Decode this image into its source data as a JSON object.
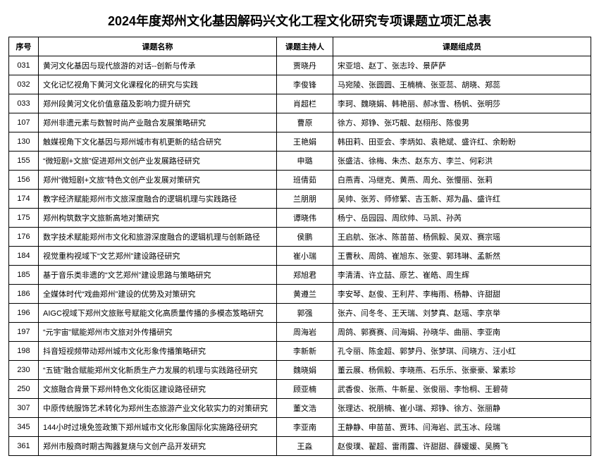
{
  "title": "2024年度郑州文化基因解码兴文化工程文化研究专项课题立项汇总表",
  "columns": [
    "序号",
    "课题名称",
    "课题主持人",
    "课题组成员"
  ],
  "rows": [
    {
      "id": "031",
      "name": "黄河文化基因与现代旅游的对话--创新与传承",
      "host": "贾晓丹",
      "team": "宋亚培、赵丁、张志玲、景萨萨"
    },
    {
      "id": "032",
      "name": "文化记忆视角下黄河文化课程化的研究与实践",
      "host": "李俊锋",
      "team": "马宛陵、张圆圆、王楠楠、张亚蕊、胡晓、郑蕊"
    },
    {
      "id": "033",
      "name": "郑州段黄河文化价值意蕴及影响力提升研究",
      "host": "肖超栏",
      "team": "李珂、魏晓娟、韩艳丽、郝冰雪、杨帆、张明莎"
    },
    {
      "id": "107",
      "name": "郑州非遗元素与数智时尚产业融合发展策略研究",
      "host": "曹原",
      "team": "徐方、郑铮、张巧靓、赵栩彤、陈俊男"
    },
    {
      "id": "130",
      "name": "触媒视角下文化基因与郑州城市有机更新的结合研究",
      "host": "王艳娟",
      "team": "韩田莉、田亚会、李炳如、袁艳斌、盛许红、余盼盼"
    },
    {
      "id": "155",
      "name": "“微短剧+文旅”促进郑州文创产业发展路径研究",
      "host": "申璐",
      "team": "张盛洁、徐梅、朱杰、赵东方、李兰、何彩洪"
    },
    {
      "id": "156",
      "name": "郑州“微短剧+文旅”特色文创产业发展对策研究",
      "host": "班倩茹",
      "team": "白燕青、冯继克、黄燕、周允、张慢丽、张莉"
    },
    {
      "id": "174",
      "name": "教字经济赋能郑州市文旅深度融合的逻辑机理与实践路径",
      "host": "兰朋朋",
      "team": "吴帅、张芳、师修繁、吉玉新、郑为晶、盛许红"
    },
    {
      "id": "175",
      "name": "郑州构筑数字文旅新高地对策研究",
      "host": "谭晓伟",
      "team": "杨宁、岳园园、周欣帅、马凯、孙芮"
    },
    {
      "id": "176",
      "name": "数字技术赋能郑州市文化和旅游深度融合的逻辑机理与创新路径",
      "host": "侯鹏",
      "team": "王启航、张冰、陈苗苗、杨佩毅、吴双、赛宗瑶"
    },
    {
      "id": "184",
      "name": "视觉重构视域下“文艺郑州”建设路径研究",
      "host": "崔小瑞",
      "team": "王曹秋、周鸽、崔旭东、张雯、郭玮琳、孟新然"
    },
    {
      "id": "185",
      "name": "基于音乐类非遗的“文艺郑州”建设思路与策略研究",
      "host": "郑旭君",
      "team": "李清清、许立喆、原艺、崔皓、周生辉"
    },
    {
      "id": "186",
      "name": "全媒体时代“戏曲郑州”建设的优势及对策研究",
      "host": "黄遵兰",
      "team": "李安琴、赵俊、王利芹、李梅雨、杨静、许甜甜"
    },
    {
      "id": "196",
      "name": "AIGC视域下郑州文旅账号赋能文化高质量传播的多模态笈略研究",
      "host": "郭强",
      "team": "张卉、闫冬冬、王天瑞、刘梦真、赵瑶、李京举"
    },
    {
      "id": "197",
      "name": "“元宇宙”赋能郑州市文旅对外传播研究",
      "host": "周海岩",
      "team": "周鸽、郭赛赛、闫海娟、孙晓华、曲丽、李亚南"
    },
    {
      "id": "198",
      "name": "抖音短视频带动郑州城市文化形象传播策略研究",
      "host": "李新新",
      "team": "孔令丽、陈金超、郭梦丹、张梦琪、闫晓方、汪小红"
    },
    {
      "id": "230",
      "name": "“五链”融合赋能郑州文化新质生产力发展的机理与实践路径研究",
      "host": "魏晓娟",
      "team": "董云展、杨佩毅、李晓燕、石乐乐、张豪豪、鞏素珍"
    },
    {
      "id": "250",
      "name": "文旅融合背景下郑州特色文化街区建设路径研究",
      "host": "顾亚楠",
      "team": "武香俊、张燕、牛新星、张俊丽、李怡桐、王碧荷"
    },
    {
      "id": "307",
      "name": "中原传统服饰艺术转化为郑州生态旅游产业文化软实力的对策研究",
      "host": "董文浩",
      "team": "张理达、祝朋楠、崔小瑞、郑铮、徐方、张丽静"
    },
    {
      "id": "345",
      "name": "144小时过境免签政策下郑州城市文化形象国际化实施路径研究",
      "host": "李亚南",
      "team": "王静静、申苗苗、贾玮、闫海岩、武玉冰、段瑞"
    },
    {
      "id": "361",
      "name": "郑州市殷商时期古陶器复烧与文创产品开发研究",
      "host": "王淼",
      "team": "赵俊璞、翟超、雷雨露、许甜甜、薛媛媛、吴腾飞"
    }
  ]
}
